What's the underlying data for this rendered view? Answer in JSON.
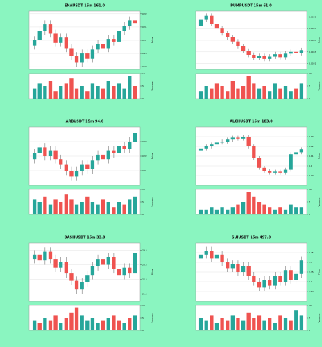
{
  "chart_data": [
    {
      "type": "candlestick",
      "title": "ENAUSDT 15m 161.0",
      "ylabel": "Price",
      "vlabel": "Volume",
      "up_color": "#26a69a",
      "down_color": "#ef5350",
      "ylim": [
        0.278,
        0.322
      ],
      "yticks": [
        0.28,
        0.29,
        0.3,
        0.31,
        0.32
      ],
      "vlim": [
        0,
        10
      ],
      "vticks": [
        0,
        5,
        10
      ],
      "open": [
        0.296,
        0.3,
        0.307,
        0.312,
        0.305,
        0.298,
        0.302,
        0.294,
        0.288,
        0.283,
        0.29,
        0.286,
        0.293,
        0.297,
        0.294,
        0.301,
        0.299,
        0.307,
        0.311,
        0.315
      ],
      "high": [
        0.303,
        0.31,
        0.315,
        0.315,
        0.308,
        0.305,
        0.305,
        0.297,
        0.291,
        0.293,
        0.293,
        0.296,
        0.3,
        0.3,
        0.304,
        0.304,
        0.31,
        0.314,
        0.318,
        0.318
      ],
      "low": [
        0.293,
        0.297,
        0.304,
        0.302,
        0.295,
        0.295,
        0.291,
        0.285,
        0.28,
        0.28,
        0.283,
        0.283,
        0.29,
        0.291,
        0.291,
        0.296,
        0.296,
        0.304,
        0.308,
        0.31
      ],
      "close": [
        0.3,
        0.307,
        0.312,
        0.305,
        0.298,
        0.302,
        0.294,
        0.288,
        0.283,
        0.29,
        0.286,
        0.293,
        0.297,
        0.294,
        0.301,
        0.299,
        0.307,
        0.311,
        0.315,
        0.313
      ],
      "volume": [
        4,
        6,
        5,
        7,
        3,
        5,
        6,
        8,
        4,
        5,
        3,
        6,
        5,
        4,
        7,
        5,
        6,
        4,
        9,
        5
      ]
    },
    {
      "type": "candlestick",
      "title": "PUMPUSDT 15m 61.0",
      "ylabel": "Price",
      "vlabel": "Volume",
      "up_color": "#26a69a",
      "down_color": "#ef5350",
      "ylim": [
        0.003,
        0.004
      ],
      "yticks": [
        0.0031,
        0.0033,
        0.0035,
        0.0037,
        0.0039
      ],
      "vlim": [
        0,
        10
      ],
      "vticks": [
        0,
        5,
        10
      ],
      "open": [
        0.00375,
        0.00385,
        0.00392,
        0.00378,
        0.0037,
        0.00362,
        0.00355,
        0.00348,
        0.0034,
        0.00332,
        0.00325,
        0.0032,
        0.00323,
        0.00318,
        0.00322,
        0.00326,
        0.00321,
        0.00327,
        0.0033,
        0.00328
      ],
      "high": [
        0.00389,
        0.00396,
        0.00396,
        0.00382,
        0.00374,
        0.00366,
        0.00359,
        0.00352,
        0.00344,
        0.00336,
        0.00329,
        0.00327,
        0.00327,
        0.00326,
        0.0033,
        0.0033,
        0.00331,
        0.00334,
        0.00334,
        0.00337
      ],
      "low": [
        0.00371,
        0.00381,
        0.00374,
        0.00366,
        0.00358,
        0.00351,
        0.00344,
        0.00336,
        0.00328,
        0.00321,
        0.00316,
        0.00316,
        0.00314,
        0.00314,
        0.00318,
        0.00317,
        0.00317,
        0.00323,
        0.00324,
        0.00324
      ],
      "close": [
        0.00385,
        0.00392,
        0.00378,
        0.0037,
        0.00362,
        0.00355,
        0.00348,
        0.0034,
        0.00332,
        0.00325,
        0.0032,
        0.00323,
        0.00318,
        0.00322,
        0.00326,
        0.00321,
        0.00327,
        0.0033,
        0.00328,
        0.00333
      ],
      "volume": [
        3,
        5,
        4,
        6,
        5,
        3,
        7,
        4,
        5,
        9,
        6,
        4,
        5,
        3,
        6,
        4,
        5,
        3,
        4,
        6
      ]
    },
    {
      "type": "candlestick",
      "title": "ARBUSDT 15m 94.0",
      "ylabel": "Price",
      "vlabel": "Volume",
      "up_color": "#26a69a",
      "down_color": "#ef5350",
      "ylim": [
        0.3,
        0.34
      ],
      "yticks": [
        0.31,
        0.32,
        0.33
      ],
      "vlim": [
        0,
        10
      ],
      "vticks": [
        0,
        5,
        10
      ],
      "open": [
        0.318,
        0.322,
        0.326,
        0.32,
        0.324,
        0.318,
        0.314,
        0.31,
        0.306,
        0.31,
        0.314,
        0.311,
        0.317,
        0.321,
        0.318,
        0.324,
        0.322,
        0.327,
        0.325,
        0.33
      ],
      "high": [
        0.325,
        0.329,
        0.329,
        0.327,
        0.327,
        0.321,
        0.317,
        0.313,
        0.313,
        0.317,
        0.317,
        0.32,
        0.324,
        0.324,
        0.327,
        0.327,
        0.33,
        0.33,
        0.333,
        0.339
      ],
      "low": [
        0.315,
        0.319,
        0.317,
        0.317,
        0.315,
        0.311,
        0.307,
        0.303,
        0.303,
        0.307,
        0.308,
        0.308,
        0.314,
        0.315,
        0.315,
        0.319,
        0.319,
        0.322,
        0.322,
        0.327
      ],
      "close": [
        0.322,
        0.326,
        0.32,
        0.324,
        0.318,
        0.314,
        0.31,
        0.306,
        0.31,
        0.314,
        0.311,
        0.317,
        0.321,
        0.318,
        0.324,
        0.322,
        0.327,
        0.325,
        0.33,
        0.336
      ],
      "volume": [
        6,
        5,
        7,
        4,
        6,
        5,
        8,
        6,
        4,
        5,
        7,
        5,
        4,
        6,
        5,
        3,
        5,
        4,
        6,
        7
      ]
    },
    {
      "type": "candlestick",
      "title": "ALCHUSDT 15m 183.0",
      "ylabel": "Price",
      "vlabel": "Volume",
      "up_color": "#26a69a",
      "down_color": "#ef5350",
      "ylim": [
        0.08,
        0.14
      ],
      "yticks": [
        0.09,
        0.1,
        0.11,
        0.12,
        0.13
      ],
      "vlim": [
        0,
        10
      ],
      "vticks": [
        0,
        5,
        10
      ],
      "open": [
        0.116,
        0.118,
        0.12,
        0.122,
        0.124,
        0.125,
        0.127,
        0.129,
        0.128,
        0.13,
        0.12,
        0.108,
        0.098,
        0.095,
        0.093,
        0.094,
        0.093,
        0.096,
        0.112,
        0.114
      ],
      "high": [
        0.12,
        0.122,
        0.124,
        0.126,
        0.127,
        0.129,
        0.131,
        0.131,
        0.132,
        0.132,
        0.122,
        0.11,
        0.1,
        0.097,
        0.096,
        0.096,
        0.098,
        0.114,
        0.116,
        0.119
      ],
      "low": [
        0.114,
        0.116,
        0.118,
        0.12,
        0.122,
        0.123,
        0.125,
        0.126,
        0.126,
        0.118,
        0.106,
        0.096,
        0.093,
        0.091,
        0.091,
        0.091,
        0.091,
        0.094,
        0.11,
        0.112
      ],
      "close": [
        0.118,
        0.12,
        0.122,
        0.124,
        0.125,
        0.127,
        0.129,
        0.128,
        0.13,
        0.12,
        0.108,
        0.098,
        0.095,
        0.093,
        0.094,
        0.093,
        0.096,
        0.112,
        0.114,
        0.117
      ],
      "volume": [
        2,
        2,
        3,
        2,
        3,
        2,
        3,
        4,
        5,
        9,
        7,
        5,
        4,
        3,
        2,
        3,
        2,
        4,
        3,
        3
      ]
    },
    {
      "type": "candlestick",
      "title": "DASHUSDT 15m 33.0",
      "ylabel": "Price",
      "vlabel": "Volume",
      "up_color": "#26a69a",
      "down_color": "#ef5350",
      "ylim": [
        21,
        25
      ],
      "yticks": [
        21.5,
        22.5,
        23.5,
        24.5
      ],
      "vlim": [
        0,
        10
      ],
      "vticks": [
        0,
        5,
        10
      ],
      "open": [
        23.9,
        24.2,
        23.8,
        24.4,
        23.9,
        23.3,
        23.7,
        22.9,
        22.4,
        21.8,
        22.3,
        22.8,
        23.4,
        23.9,
        23.5,
        24.0,
        23.2,
        22.8,
        23.3,
        22.9
      ],
      "high": [
        24.5,
        24.5,
        24.7,
        24.7,
        24.2,
        24.0,
        24.0,
        23.2,
        22.7,
        22.6,
        23.1,
        23.7,
        24.2,
        24.2,
        24.3,
        24.3,
        23.5,
        23.6,
        23.6,
        24.6
      ],
      "low": [
        23.6,
        23.5,
        23.5,
        23.6,
        23.0,
        23.0,
        22.6,
        22.1,
        21.5,
        21.5,
        22.0,
        22.5,
        23.1,
        23.2,
        23.2,
        22.9,
        22.5,
        22.5,
        22.6,
        22.6
      ],
      "close": [
        24.2,
        23.8,
        24.4,
        23.9,
        23.3,
        23.7,
        22.9,
        22.4,
        21.8,
        22.3,
        22.8,
        23.4,
        23.9,
        23.5,
        24.0,
        23.2,
        22.8,
        23.3,
        22.9,
        24.3
      ],
      "volume": [
        4,
        3,
        5,
        4,
        6,
        3,
        5,
        7,
        9,
        6,
        4,
        5,
        3,
        4,
        5,
        6,
        4,
        3,
        5,
        6
      ]
    },
    {
      "type": "candlestick",
      "title": "SUIUSDT 15m 497.0",
      "ylabel": "Price",
      "vlabel": "Volume",
      "up_color": "#26a69a",
      "down_color": "#ef5350",
      "ylim": [
        3.2,
        3.5
      ],
      "yticks": [
        3.25,
        3.3,
        3.35,
        3.4,
        3.45
      ],
      "vlim": [
        0,
        10
      ],
      "vticks": [
        0,
        5,
        10
      ],
      "open": [
        3.42,
        3.44,
        3.46,
        3.42,
        3.44,
        3.4,
        3.37,
        3.39,
        3.35,
        3.38,
        3.33,
        3.3,
        3.27,
        3.31,
        3.28,
        3.33,
        3.3,
        3.36,
        3.31,
        3.34
      ],
      "high": [
        3.46,
        3.48,
        3.48,
        3.46,
        3.46,
        3.42,
        3.41,
        3.41,
        3.4,
        3.4,
        3.35,
        3.32,
        3.33,
        3.33,
        3.35,
        3.35,
        3.38,
        3.38,
        3.36,
        3.43
      ],
      "low": [
        3.4,
        3.42,
        3.4,
        3.4,
        3.38,
        3.35,
        3.35,
        3.33,
        3.33,
        3.31,
        3.28,
        3.25,
        3.25,
        3.26,
        3.26,
        3.28,
        3.28,
        3.29,
        3.29,
        3.32
      ],
      "close": [
        3.44,
        3.46,
        3.42,
        3.44,
        3.4,
        3.37,
        3.39,
        3.35,
        3.38,
        3.33,
        3.3,
        3.27,
        3.31,
        3.28,
        3.33,
        3.3,
        3.36,
        3.31,
        3.34,
        3.41
      ],
      "volume": [
        5,
        4,
        6,
        3,
        5,
        4,
        6,
        5,
        4,
        7,
        5,
        6,
        4,
        5,
        3,
        6,
        5,
        4,
        8,
        6
      ]
    }
  ]
}
